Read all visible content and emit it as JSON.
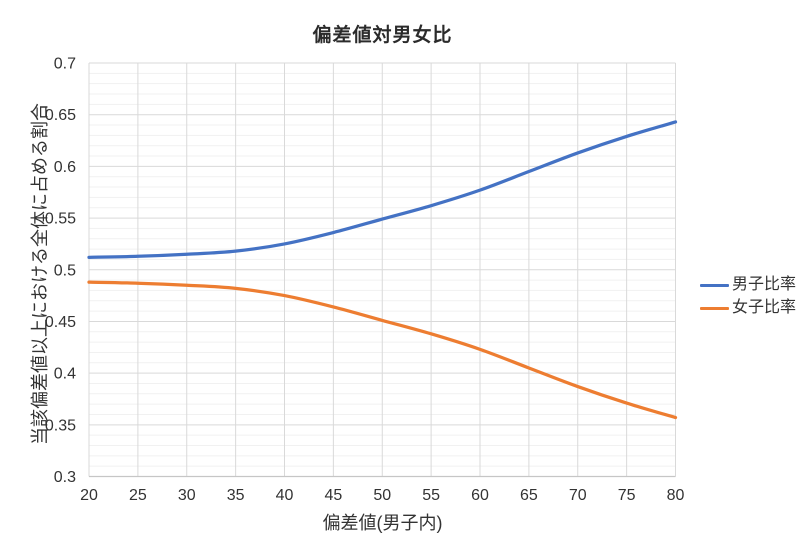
{
  "chart_data": {
    "type": "line",
    "title": "偏差値対男女比",
    "xlabel": "偏差値(男子内)",
    "ylabel": "当該偏差値以上における全体に占める割合",
    "x": [
      20,
      25,
      30,
      35,
      40,
      45,
      50,
      55,
      60,
      65,
      70,
      75,
      80
    ],
    "series": [
      {
        "name": "男子比率",
        "color": "#4472C4",
        "values": [
          0.512,
          0.513,
          0.515,
          0.518,
          0.525,
          0.536,
          0.549,
          0.562,
          0.577,
          0.595,
          0.613,
          0.629,
          0.643
        ]
      },
      {
        "name": "女子比率",
        "color": "#ED7D31",
        "values": [
          0.488,
          0.487,
          0.485,
          0.482,
          0.475,
          0.464,
          0.451,
          0.438,
          0.423,
          0.405,
          0.387,
          0.371,
          0.357
        ]
      }
    ],
    "xlim": [
      20,
      80
    ],
    "ylim": [
      0.3,
      0.7
    ],
    "xticks": [
      20,
      25,
      30,
      35,
      40,
      45,
      50,
      55,
      60,
      65,
      70,
      75,
      80
    ],
    "xtick_labels": [
      "20",
      "25",
      "30",
      "35",
      "40",
      "45",
      "50",
      "55",
      "60",
      "65",
      "70",
      "75",
      "80"
    ],
    "yticks": [
      0.3,
      0.35,
      0.4,
      0.45,
      0.5,
      0.55,
      0.6,
      0.65,
      0.7
    ],
    "ytick_labels": [
      "0.3",
      "0.35",
      "0.4",
      "0.45",
      "0.5",
      "0.55",
      "0.6",
      "0.65",
      "0.7"
    ],
    "y_minor_step": 0.01,
    "grid": true,
    "legend_position": "right"
  },
  "colors": {
    "grid_major": "#d9d9d9",
    "grid_minor": "#f1f1f1",
    "axis_line": "#c6c6c6",
    "tick_text": "#333333"
  }
}
